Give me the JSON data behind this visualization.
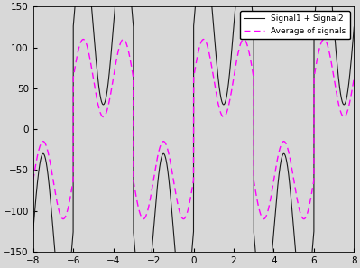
{
  "xlim": [
    -8,
    8
  ],
  "ylim": [
    -150,
    150
  ],
  "xticks": [
    -8,
    -6,
    -4,
    -2,
    0,
    2,
    4,
    6,
    8
  ],
  "yticks": [
    -150,
    -100,
    -50,
    0,
    50,
    100,
    150
  ],
  "signal1_label": "Signal1 + Signal2",
  "signal2_label": "Average of signals",
  "line1_color": "#1a1a1a",
  "line2_color": "magenta",
  "line1_style": "-",
  "line2_style": "--",
  "bg_color": "#d8d8d8",
  "figsize": [
    3.99,
    2.97
  ],
  "dpi": 100,
  "sq_amplitude": 125,
  "sq_period": 6.0,
  "sine_amplitude": 95,
  "sine_freq_mult": 3,
  "n_points": 5000,
  "x_start": -8,
  "x_end": 8
}
